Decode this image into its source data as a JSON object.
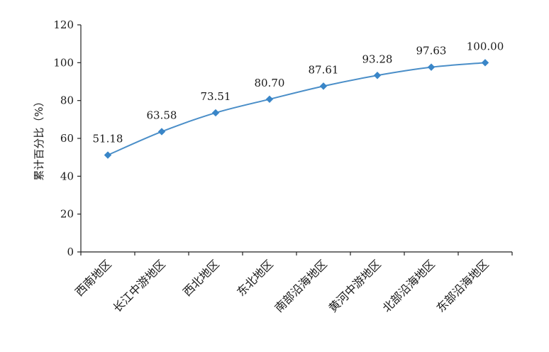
{
  "chart_data": {
    "type": "line",
    "categories": [
      "西南地区",
      "长江中游地区",
      "西北地区",
      "东北地区",
      "南部沿海地区",
      "黄河中游地区",
      "北部沿海地区",
      "东部沿海地区"
    ],
    "values": [
      51.18,
      63.58,
      73.51,
      80.7,
      87.61,
      93.28,
      97.63,
      100.0
    ],
    "value_labels": [
      "51.18",
      "63.58",
      "73.51",
      "80.70",
      "87.61",
      "93.28",
      "97.63",
      "100.00"
    ],
    "ylabel": "累计百分比（%）",
    "xlabel": "",
    "ylim": [
      0,
      120
    ],
    "yticks": [
      0,
      20,
      40,
      60,
      80,
      100,
      120
    ],
    "grid": false,
    "line_color": "#4a8ec8",
    "marker_color": "#3a86c8",
    "marker": "diamond"
  }
}
